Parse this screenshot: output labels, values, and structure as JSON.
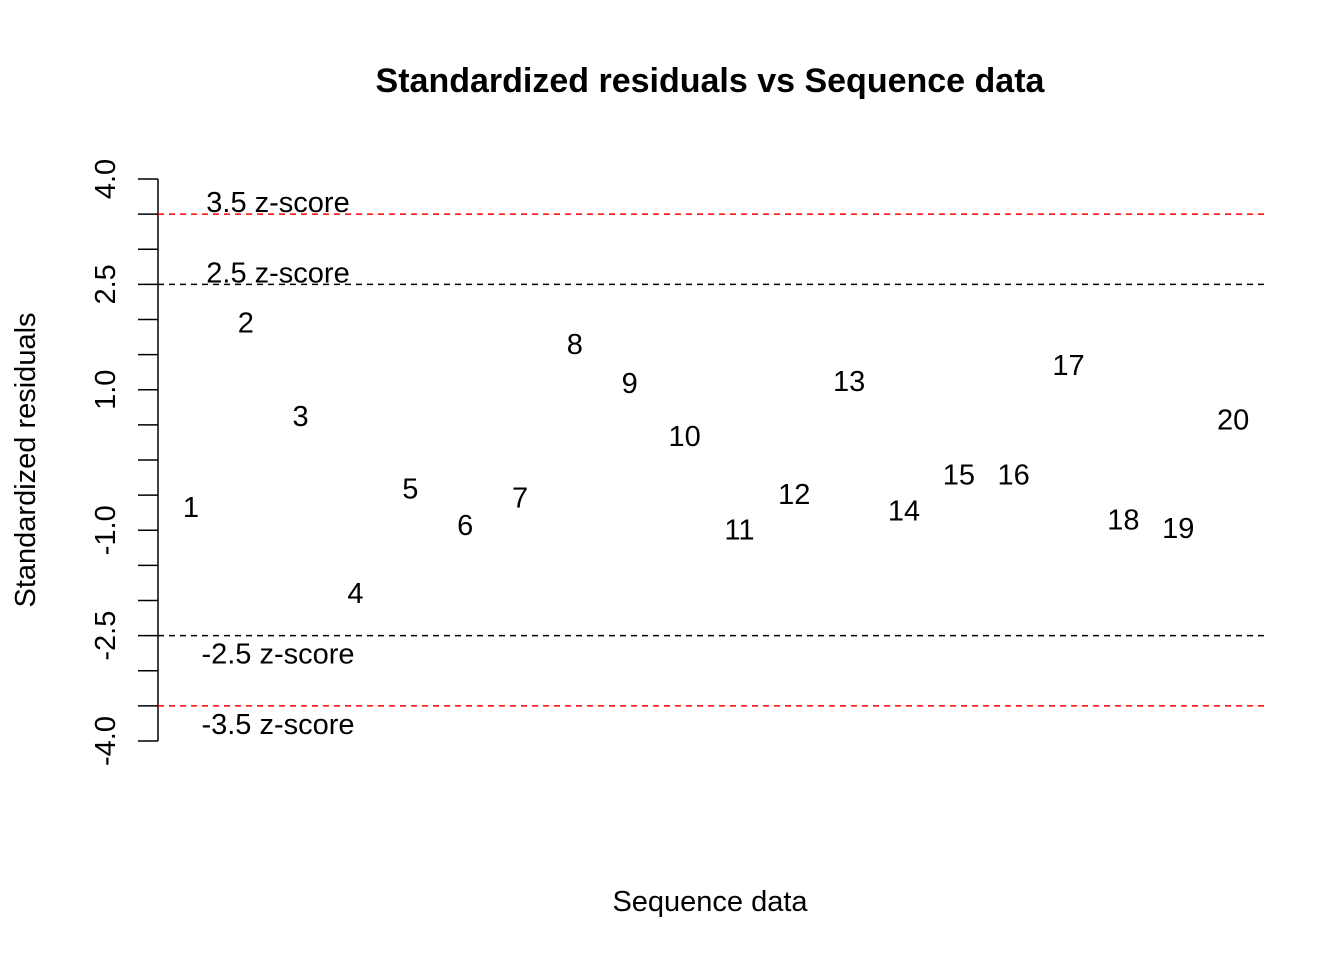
{
  "chart_data": {
    "type": "scatter",
    "title": "Standardized residuals vs Sequence data",
    "xlabel": "Sequence data",
    "ylabel": "Standardized residuals",
    "xlim": [
      0.4,
      20.6
    ],
    "ylim": [
      -4.0,
      4.0
    ],
    "y_ticks": [
      -4.0,
      -3.5,
      -3.0,
      -2.5,
      -2.0,
      -1.5,
      -1.0,
      -0.5,
      0.0,
      0.5,
      1.0,
      1.5,
      2.0,
      2.5,
      3.0,
      3.5,
      4.0
    ],
    "y_tick_labels": [
      {
        "value": 4.0,
        "label": "4.0"
      },
      {
        "value": 2.5,
        "label": "2.5"
      },
      {
        "value": 1.0,
        "label": "1.0"
      },
      {
        "value": -1.0,
        "label": "-1.0"
      },
      {
        "value": -2.5,
        "label": "-2.5"
      },
      {
        "value": -4.0,
        "label": "-4.0"
      }
    ],
    "grid": false,
    "marker": "text-label",
    "points": [
      {
        "x": 1,
        "y": -0.68,
        "label": "1"
      },
      {
        "x": 2,
        "y": 1.94,
        "label": "2"
      },
      {
        "x": 3,
        "y": 0.61,
        "label": "3"
      },
      {
        "x": 4,
        "y": -1.91,
        "label": "4"
      },
      {
        "x": 5,
        "y": -0.42,
        "label": "5"
      },
      {
        "x": 6,
        "y": -0.94,
        "label": "6"
      },
      {
        "x": 7,
        "y": -0.55,
        "label": "7"
      },
      {
        "x": 8,
        "y": 1.64,
        "label": "8"
      },
      {
        "x": 9,
        "y": 1.08,
        "label": "9"
      },
      {
        "x": 10,
        "y": 0.33,
        "label": "10"
      },
      {
        "x": 11,
        "y": -1.0,
        "label": "11"
      },
      {
        "x": 12,
        "y": -0.5,
        "label": "12"
      },
      {
        "x": 13,
        "y": 1.11,
        "label": "13"
      },
      {
        "x": 14,
        "y": -0.73,
        "label": "14"
      },
      {
        "x": 15,
        "y": -0.22,
        "label": "15"
      },
      {
        "x": 16,
        "y": -0.22,
        "label": "16"
      },
      {
        "x": 17,
        "y": 1.34,
        "label": "17"
      },
      {
        "x": 18,
        "y": -0.86,
        "label": "18"
      },
      {
        "x": 19,
        "y": -0.98,
        "label": "19"
      },
      {
        "x": 20,
        "y": 0.56,
        "label": "20"
      }
    ],
    "reference_lines": [
      {
        "y": 3.5,
        "label": "3.5 z-score",
        "color": "#ff0000",
        "style": "dashed"
      },
      {
        "y": 2.5,
        "label": "2.5 z-score",
        "color": "#000000",
        "style": "dashed"
      },
      {
        "y": -2.5,
        "label": "-2.5 z-score",
        "color": "#000000",
        "style": "dashed"
      },
      {
        "y": -3.5,
        "label": "-3.5 z-score",
        "color": "#ff0000",
        "style": "dashed"
      }
    ]
  }
}
